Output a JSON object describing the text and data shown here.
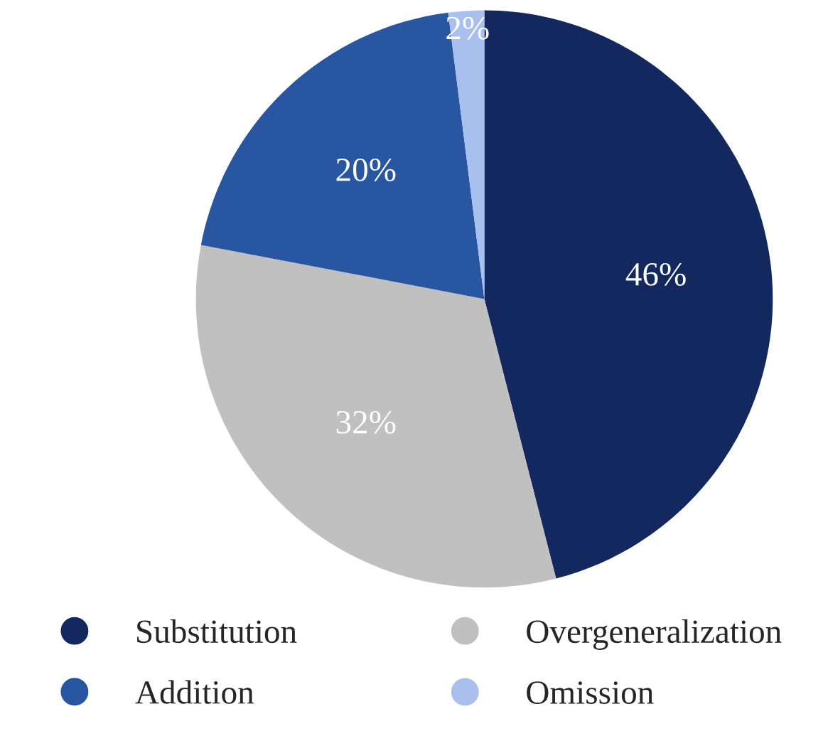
{
  "chart_data": {
    "type": "pie",
    "categories": [
      "Substitution",
      "Overgeneralization",
      "Addition",
      "Omission"
    ],
    "values": [
      46,
      32,
      20,
      2
    ],
    "colors": [
      "#13285e",
      "#c0c0c0",
      "#2856a0",
      "#a9c0ef"
    ],
    "value_labels": [
      "46%",
      "32%",
      "20%",
      "2%"
    ],
    "legend": "bottom"
  }
}
